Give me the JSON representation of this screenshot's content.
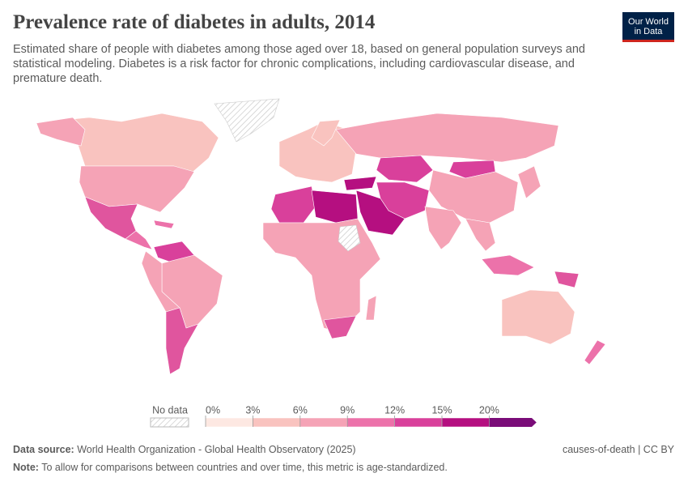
{
  "header": {
    "title": "Prevalence rate of diabetes in adults, 2014",
    "subtitle": "Estimated share of people with diabetes among those aged over 18, based on general population surveys and statistical modeling. Diabetes is a risk factor for chronic complications, including cardiovascular disease, and premature death.",
    "logo": [
      "Our World",
      "in Data"
    ]
  },
  "legend": {
    "no_data_label": "No data",
    "ticks": [
      {
        "value": 0,
        "label": "0%"
      },
      {
        "value": 3,
        "label": "3%"
      },
      {
        "value": 6,
        "label": "6%"
      },
      {
        "value": 9,
        "label": "9%"
      },
      {
        "value": 12,
        "label": "12%"
      },
      {
        "value": 15,
        "label": "15%"
      },
      {
        "value": 20,
        "label": "20%"
      }
    ],
    "colors": [
      "#fde8e2",
      "#f9c3bf",
      "#f5a3b6",
      "#ec72aa",
      "#d9409b",
      "#b50f80",
      "#7a0c78"
    ]
  },
  "footer": {
    "source_label": "Data source:",
    "source": "World Health Organization - Global Health Observatory (2025)",
    "license": "causes-of-death | CC BY",
    "note_label": "Note:",
    "note": "To allow for comparisons between countries and over time, this metric is age-standardized."
  }
}
